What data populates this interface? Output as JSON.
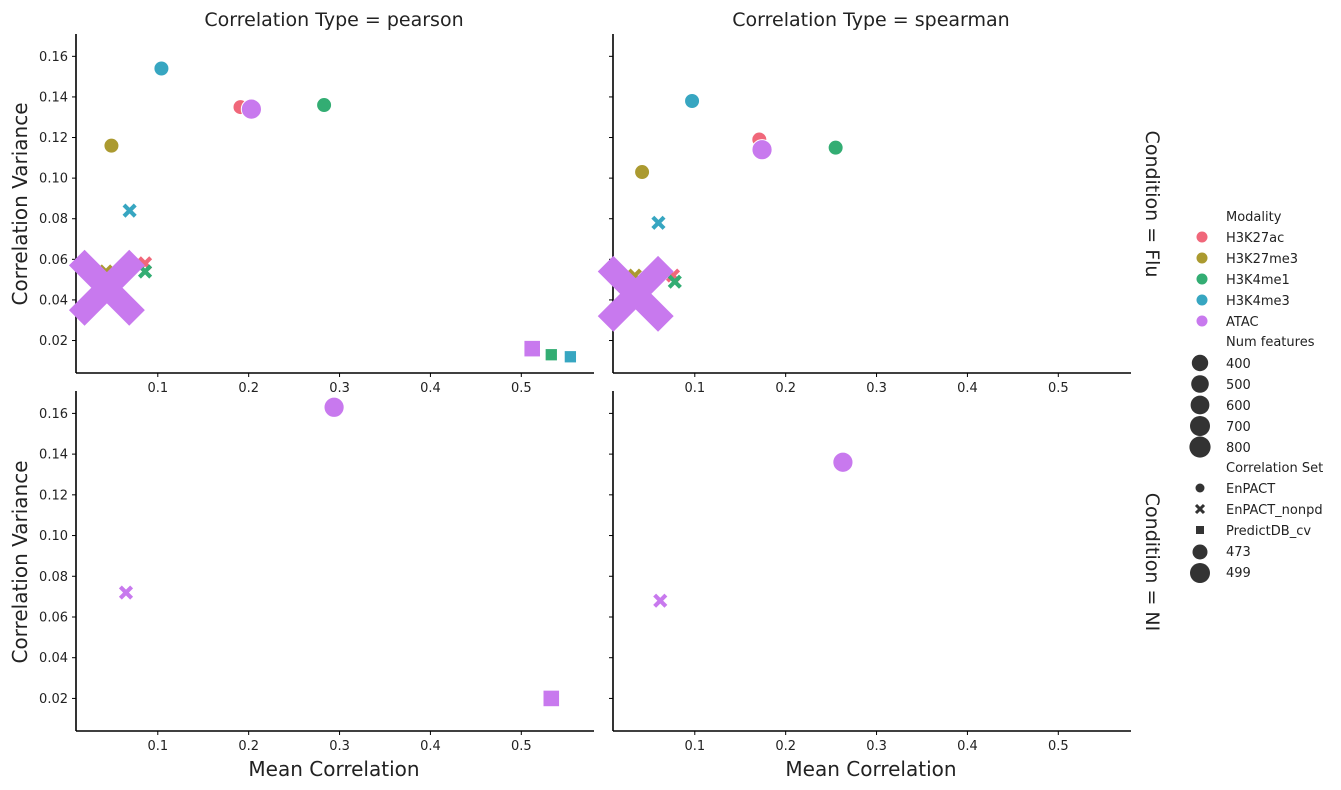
{
  "legend": {
    "modality_title": "Modality",
    "modalities": [
      "H3K27ac",
      "H3K27me3",
      "H3K4me1",
      "H3K4me3",
      "ATAC"
    ],
    "numfeat_title": "Num features",
    "numfeat_values": [
      "400",
      "500",
      "600",
      "700",
      "800"
    ],
    "corrset_title": "Correlation Set",
    "corrsets": [
      "EnPACT",
      "EnPACT_nonpd",
      "PredictDB_cv"
    ],
    "extra_sizes": [
      "473",
      "499"
    ]
  },
  "colors": {
    "H3K27ac": "#f0677a",
    "H3K27me3": "#ab9a30",
    "H3K4me1": "#33ad73",
    "H3K4me3": "#37a6c1",
    "ATAC": "#c879ee",
    "legend_marker": "#333333"
  },
  "chart_data": {
    "type": "scatter",
    "facet_row_label": "Condition",
    "facet_col_label": "Correlation Type",
    "xlabel": "Mean Correlation",
    "ylabel": "Correlation Variance",
    "xlim": [
      0.01,
      0.58
    ],
    "ylim": [
      0.004,
      0.171
    ],
    "xticks": [
      "0.1",
      "0.2",
      "0.3",
      "0.4",
      "0.5"
    ],
    "yticks": [
      "0.02",
      "0.04",
      "0.06",
      "0.08",
      "0.10",
      "0.12",
      "0.14",
      "0.16"
    ],
    "panels": [
      {
        "row": "Flu",
        "col": "pearson",
        "title": "Correlation Type = pearson",
        "row_title": "Condition = Flu",
        "points": [
          {
            "modality": "H3K4me3",
            "set": "EnPACT",
            "features": 473,
            "x": 0.104,
            "y": 0.154
          },
          {
            "modality": "H3K27ac",
            "set": "EnPACT",
            "features": 473,
            "x": 0.191,
            "y": 0.135
          },
          {
            "modality": "ATAC",
            "set": "EnPACT",
            "features": 499,
            "x": 0.203,
            "y": 0.134
          },
          {
            "modality": "H3K4me1",
            "set": "EnPACT",
            "features": 473,
            "x": 0.283,
            "y": 0.136
          },
          {
            "modality": "H3K27me3",
            "set": "EnPACT",
            "features": 473,
            "x": 0.049,
            "y": 0.116
          },
          {
            "modality": "H3K4me3",
            "set": "EnPACT_nonpd",
            "features": 473,
            "x": 0.069,
            "y": 0.084
          },
          {
            "modality": "H3K27ac",
            "set": "EnPACT_nonpd",
            "features": 473,
            "x": 0.086,
            "y": 0.058
          },
          {
            "modality": "H3K27me3",
            "set": "EnPACT_nonpd",
            "features": 473,
            "x": 0.043,
            "y": 0.054
          },
          {
            "modality": "H3K4me1",
            "set": "EnPACT_nonpd",
            "features": 473,
            "x": 0.086,
            "y": 0.054
          },
          {
            "modality": "ATAC",
            "set": "EnPACT_nonpd",
            "features": 800,
            "x": 0.044,
            "y": 0.046
          },
          {
            "modality": "ATAC",
            "set": "PredictDB_cv",
            "features": 499,
            "x": 0.512,
            "y": 0.016
          },
          {
            "modality": "H3K4me1",
            "set": "PredictDB_cv",
            "features": 473,
            "x": 0.533,
            "y": 0.013
          },
          {
            "modality": "H3K27me3",
            "set": "PredictDB_cv",
            "features": 400,
            "x": 0.548,
            "y": 0.012
          },
          {
            "modality": "H3K4me3",
            "set": "PredictDB_cv",
            "features": 473,
            "x": 0.554,
            "y": 0.012
          }
        ]
      },
      {
        "row": "Flu",
        "col": "spearman",
        "title": "Correlation Type = spearman",
        "row_title": "Condition = Flu",
        "points": [
          {
            "modality": "H3K4me3",
            "set": "EnPACT",
            "features": 473,
            "x": 0.097,
            "y": 0.138
          },
          {
            "modality": "H3K27ac",
            "set": "EnPACT",
            "features": 473,
            "x": 0.171,
            "y": 0.119
          },
          {
            "modality": "ATAC",
            "set": "EnPACT",
            "features": 499,
            "x": 0.174,
            "y": 0.114
          },
          {
            "modality": "H3K4me1",
            "set": "EnPACT",
            "features": 473,
            "x": 0.255,
            "y": 0.115
          },
          {
            "modality": "H3K27me3",
            "set": "EnPACT",
            "features": 473,
            "x": 0.042,
            "y": 0.103
          },
          {
            "modality": "H3K4me3",
            "set": "EnPACT_nonpd",
            "features": 473,
            "x": 0.06,
            "y": 0.078
          },
          {
            "modality": "H3K27ac",
            "set": "EnPACT_nonpd",
            "features": 473,
            "x": 0.076,
            "y": 0.052
          },
          {
            "modality": "H3K27me3",
            "set": "EnPACT_nonpd",
            "features": 473,
            "x": 0.034,
            "y": 0.052
          },
          {
            "modality": "H3K4me1",
            "set": "EnPACT_nonpd",
            "features": 473,
            "x": 0.078,
            "y": 0.049
          },
          {
            "modality": "ATAC",
            "set": "EnPACT_nonpd",
            "features": 800,
            "x": 0.035,
            "y": 0.043
          }
        ]
      },
      {
        "row": "NI",
        "col": "pearson",
        "title": "",
        "row_title": "Condition = NI",
        "points": [
          {
            "modality": "ATAC",
            "set": "EnPACT",
            "features": 499,
            "x": 0.294,
            "y": 0.163
          },
          {
            "modality": "ATAC",
            "set": "EnPACT_nonpd",
            "features": 473,
            "x": 0.065,
            "y": 0.072
          },
          {
            "modality": "ATAC",
            "set": "PredictDB_cv",
            "features": 499,
            "x": 0.533,
            "y": 0.02
          }
        ]
      },
      {
        "row": "NI",
        "col": "spearman",
        "title": "",
        "row_title": "Condition = NI",
        "points": [
          {
            "modality": "ATAC",
            "set": "EnPACT",
            "features": 499,
            "x": 0.263,
            "y": 0.136
          },
          {
            "modality": "ATAC",
            "set": "EnPACT_nonpd",
            "features": 473,
            "x": 0.062,
            "y": 0.068
          }
        ]
      }
    ]
  }
}
